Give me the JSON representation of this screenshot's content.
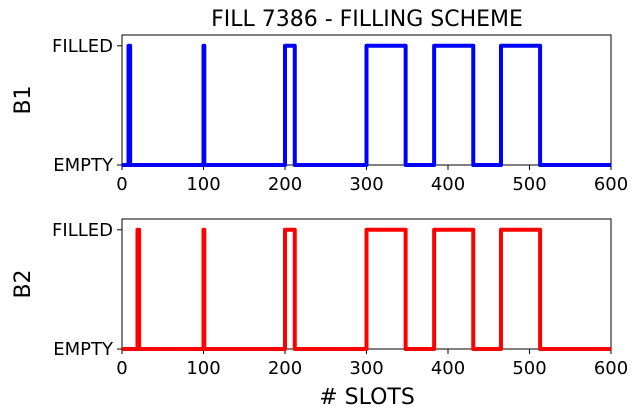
{
  "chart_data": [
    {
      "type": "line",
      "title": "FILL 7386 - FILLING SCHEME",
      "ylabel": "B1",
      "xlabel": "",
      "xlim": [
        0,
        600
      ],
      "ylim": [
        0,
        1
      ],
      "xticks": [
        "0",
        "100",
        "200",
        "300",
        "400",
        "500",
        "600"
      ],
      "yticks": [
        "EMPTY",
        "FILLED"
      ],
      "grid": false,
      "color": "#0000ff",
      "series": [
        {
          "x": [
            0,
            8,
            8,
            10,
            10,
            100,
            100,
            101,
            101,
            200,
            200,
            212,
            212,
            300,
            300,
            348,
            348,
            383,
            383,
            431,
            431,
            465,
            465,
            513,
            513,
            600
          ],
          "values": [
            0,
            0,
            1,
            1,
            0,
            0,
            1,
            1,
            0,
            0,
            1,
            1,
            0,
            0,
            1,
            1,
            0,
            0,
            1,
            1,
            0,
            0,
            1,
            1,
            0,
            0
          ]
        }
      ]
    },
    {
      "type": "line",
      "title": "",
      "ylabel": "B2",
      "xlabel": "# SLOTS",
      "xlim": [
        0,
        600
      ],
      "ylim": [
        0,
        1
      ],
      "xticks": [
        "0",
        "100",
        "200",
        "300",
        "400",
        "500",
        "600"
      ],
      "yticks": [
        "EMPTY",
        "FILLED"
      ],
      "grid": false,
      "color": "#ff0000",
      "series": [
        {
          "x": [
            0,
            19,
            19,
            21,
            21,
            100,
            100,
            101,
            101,
            200,
            200,
            212,
            212,
            300,
            300,
            348,
            348,
            383,
            383,
            431,
            431,
            465,
            465,
            513,
            513,
            600
          ],
          "values": [
            0,
            0,
            1,
            1,
            0,
            0,
            1,
            1,
            0,
            0,
            1,
            1,
            0,
            0,
            1,
            1,
            0,
            0,
            1,
            1,
            0,
            0,
            1,
            1,
            0,
            0
          ]
        }
      ]
    }
  ]
}
